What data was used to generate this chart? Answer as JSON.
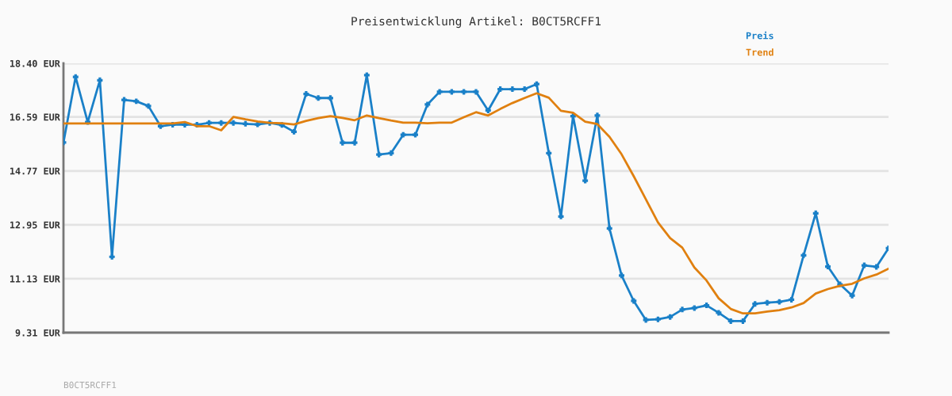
{
  "chart_data": {
    "type": "line",
    "title": "Preisentwicklung Artikel: B0CT5RCFF1",
    "categories": [
      null,
      null,
      null,
      null,
      null,
      null,
      null,
      null,
      null,
      null,
      null,
      null,
      null,
      null,
      null,
      null,
      null,
      null,
      null,
      null,
      null,
      null,
      null,
      null,
      null,
      null,
      null,
      null,
      null,
      null,
      null,
      null,
      null,
      null,
      null,
      null,
      null,
      null,
      null,
      null,
      null,
      null,
      null,
      null,
      null,
      null,
      null,
      null,
      null,
      null,
      null,
      null,
      null,
      null,
      null,
      null,
      null,
      null,
      null,
      null,
      null,
      null,
      null,
      null,
      null,
      null,
      null,
      null,
      null
    ],
    "series": [
      {
        "name": "Preis",
        "color": "#1a80c8",
        "marker": "cross",
        "values": [
          15.73,
          17.94,
          16.42,
          17.83,
          11.87,
          17.17,
          17.12,
          16.96,
          16.28,
          16.33,
          16.33,
          16.33,
          16.39,
          16.39,
          16.39,
          16.36,
          16.34,
          16.39,
          16.32,
          16.09,
          17.37,
          17.23,
          17.23,
          15.72,
          15.72,
          18.0,
          15.32,
          15.37,
          15.99,
          15.99,
          17.01,
          17.44,
          17.44,
          17.44,
          17.44,
          16.81,
          17.53,
          17.53,
          17.53,
          17.7,
          15.37,
          13.23,
          16.62,
          14.44,
          16.64,
          12.83,
          11.24,
          10.38,
          9.74,
          9.76,
          9.84,
          10.09,
          10.14,
          10.23,
          9.98,
          9.7,
          9.7,
          10.28,
          10.32,
          10.35,
          10.42,
          11.92,
          13.34,
          11.54,
          10.94,
          10.56,
          11.58,
          11.53,
          12.16
        ]
      },
      {
        "name": "Trend",
        "color": "#e08010",
        "marker": "none",
        "values": [
          16.37,
          16.37,
          16.37,
          16.37,
          16.37,
          16.37,
          16.37,
          16.37,
          16.37,
          16.37,
          16.42,
          16.28,
          16.28,
          16.14,
          16.59,
          16.51,
          16.44,
          16.39,
          16.38,
          16.34,
          16.46,
          16.55,
          16.62,
          16.56,
          16.48,
          16.64,
          16.55,
          16.47,
          16.4,
          16.4,
          16.38,
          16.4,
          16.4,
          16.58,
          16.75,
          16.64,
          16.86,
          17.06,
          17.23,
          17.39,
          17.24,
          16.8,
          16.73,
          16.43,
          16.35,
          15.92,
          15.33,
          14.59,
          13.81,
          13.03,
          12.5,
          12.18,
          11.51,
          11.07,
          10.47,
          10.11,
          9.96,
          9.96,
          10.02,
          10.07,
          10.16,
          10.31,
          10.63,
          10.78,
          10.89,
          10.96,
          11.14,
          11.27,
          11.47
        ]
      }
    ],
    "ylim": [
      9.31,
      18.4
    ],
    "yticks": [
      {
        "value": 9.31,
        "label": "9.31 EUR"
      },
      {
        "value": 11.13,
        "label": "11.13 EUR"
      },
      {
        "value": 12.95,
        "label": "12.95 EUR"
      },
      {
        "value": 14.77,
        "label": "14.77 EUR"
      },
      {
        "value": 16.59,
        "label": "16.59 EUR"
      },
      {
        "value": 18.4,
        "label": "18.40 EUR"
      }
    ],
    "grid": "y",
    "legend": "top right",
    "line_style": "solid",
    "annotations": [
      "B0CT5RCFF1"
    ]
  }
}
